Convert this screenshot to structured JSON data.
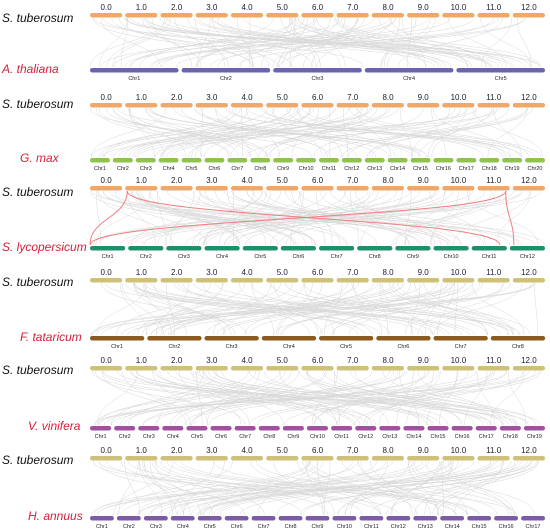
{
  "colors": {
    "link_grey": "#d9d9d9",
    "highlight": "#f08080",
    "label_black": "#111111",
    "label_red": "#d6203b"
  },
  "tracks": [
    {
      "id": "st1",
      "species": "S. tuberosum",
      "label_color": "#111111",
      "color": "#f0a868",
      "bars": [
        "0.0",
        "1.0",
        "2.0",
        "3.0",
        "4.0",
        "5.0",
        "6.0",
        "7.0",
        "8.0",
        "9.0",
        "10.0",
        "11.0",
        "12.0"
      ],
      "label_pos": "above"
    },
    {
      "id": "ath",
      "species": "A. thaliana",
      "label_color": "#d6203b",
      "color": "#6a63b0",
      "bars": [
        "Chr1",
        "Chr2",
        "Chr3",
        "Chr4",
        "Chr5"
      ],
      "label_pos": "below"
    },
    {
      "id": "st2",
      "species": "S. tuberosum",
      "label_color": "#111111",
      "color": "#f0a868",
      "bars": [
        "0.0",
        "1.0",
        "2.0",
        "3.0",
        "4.0",
        "5.0",
        "6.0",
        "7.0",
        "8.0",
        "9.0",
        "10.0",
        "11.0",
        "12.0"
      ],
      "label_pos": "above"
    },
    {
      "id": "gmx",
      "species": "G. max",
      "label_color": "#d6203b",
      "color": "#8fc24e",
      "bars": [
        "Chr1",
        "Chr2",
        "Chr3",
        "Chr4",
        "Chr5",
        "Chr6",
        "Chr7",
        "Chr8",
        "Chr9",
        "Chr10",
        "Chr11",
        "Chr12",
        "Chr13",
        "Chr14",
        "Chr15",
        "Chr16",
        "Chr17",
        "Chr18",
        "Chr19",
        "Chr20"
      ],
      "label_pos": "below"
    },
    {
      "id": "st3",
      "species": "S. tuberosum",
      "label_color": "#111111",
      "color": "#f0a868",
      "bars": [
        "0.0",
        "1.0",
        "2.0",
        "3.0",
        "4.0",
        "5.0",
        "6.0",
        "7.0",
        "8.0",
        "9.0",
        "10.0",
        "11.0",
        "12.0"
      ],
      "label_pos": "above"
    },
    {
      "id": "sly",
      "species": "S. lycopersicum",
      "label_color": "#d6203b",
      "color": "#1f8f68",
      "bars": [
        "Chr1",
        "Chr2",
        "Chr3",
        "Chr4",
        "Chr5",
        "Chr6",
        "Chr7",
        "Chr8",
        "Chr9",
        "Chr10",
        "Chr11",
        "Chr12"
      ],
      "label_pos": "below"
    },
    {
      "id": "st4",
      "species": "S. tuberosum",
      "label_color": "#111111",
      "color": "#cfc07a",
      "bars": [
        "0.0",
        "1.0",
        "2.0",
        "3.0",
        "4.0",
        "5.0",
        "6.0",
        "7.0",
        "8.0",
        "9.0",
        "10.0",
        "11.0",
        "12.0"
      ],
      "label_pos": "above"
    },
    {
      "id": "fta",
      "species": "F. tataricum",
      "label_color": "#d6203b",
      "color": "#8b5a1e",
      "bars": [
        "Chr1",
        "Chr2",
        "Chr3",
        "Chr4",
        "Chr5",
        "Chr6",
        "Chr7",
        "Chr8"
      ],
      "label_pos": "below"
    },
    {
      "id": "st5",
      "species": "S. tuberosum",
      "label_color": "#111111",
      "color": "#cfc07a",
      "bars": [
        "0.0",
        "1.0",
        "2.0",
        "3.0",
        "4.0",
        "5.0",
        "6.0",
        "7.0",
        "8.0",
        "9.0",
        "10.0",
        "11.0",
        "12.0"
      ],
      "label_pos": "above"
    },
    {
      "id": "vvi",
      "species": "V. vinifera",
      "label_color": "#d6203b",
      "color": "#a34e9e",
      "bars": [
        "Chr1",
        "Chr2",
        "Chr3",
        "Chr4",
        "Chr5",
        "Chr6",
        "Chr7",
        "Chr8",
        "Chr9",
        "Chr10",
        "Chr11",
        "Chr12",
        "Chr13",
        "Chr14",
        "Chr15",
        "Chr16",
        "Chr17",
        "Chr18",
        "Chr19"
      ],
      "label_pos": "below"
    },
    {
      "id": "st6",
      "species": "S. tuberosum",
      "label_color": "#111111",
      "color": "#cfc07a",
      "bars": [
        "0.0",
        "1.0",
        "2.0",
        "3.0",
        "4.0",
        "5.0",
        "6.0",
        "7.0",
        "8.0",
        "9.0",
        "10.0",
        "11.0",
        "12.0"
      ],
      "label_pos": "above"
    },
    {
      "id": "han",
      "species": "H. annuus",
      "label_color": "#d6203b",
      "color": "#7c5aa6",
      "bars": [
        "Chr1",
        "Chr2",
        "Chr3",
        "Chr4",
        "Chr5",
        "Chr6",
        "Chr7",
        "Chr8",
        "Chr9",
        "Chr10",
        "Chr11",
        "Chr12",
        "Chr13",
        "Chr14",
        "Chr15",
        "Chr16",
        "Chr17"
      ],
      "label_pos": "below"
    }
  ]
}
